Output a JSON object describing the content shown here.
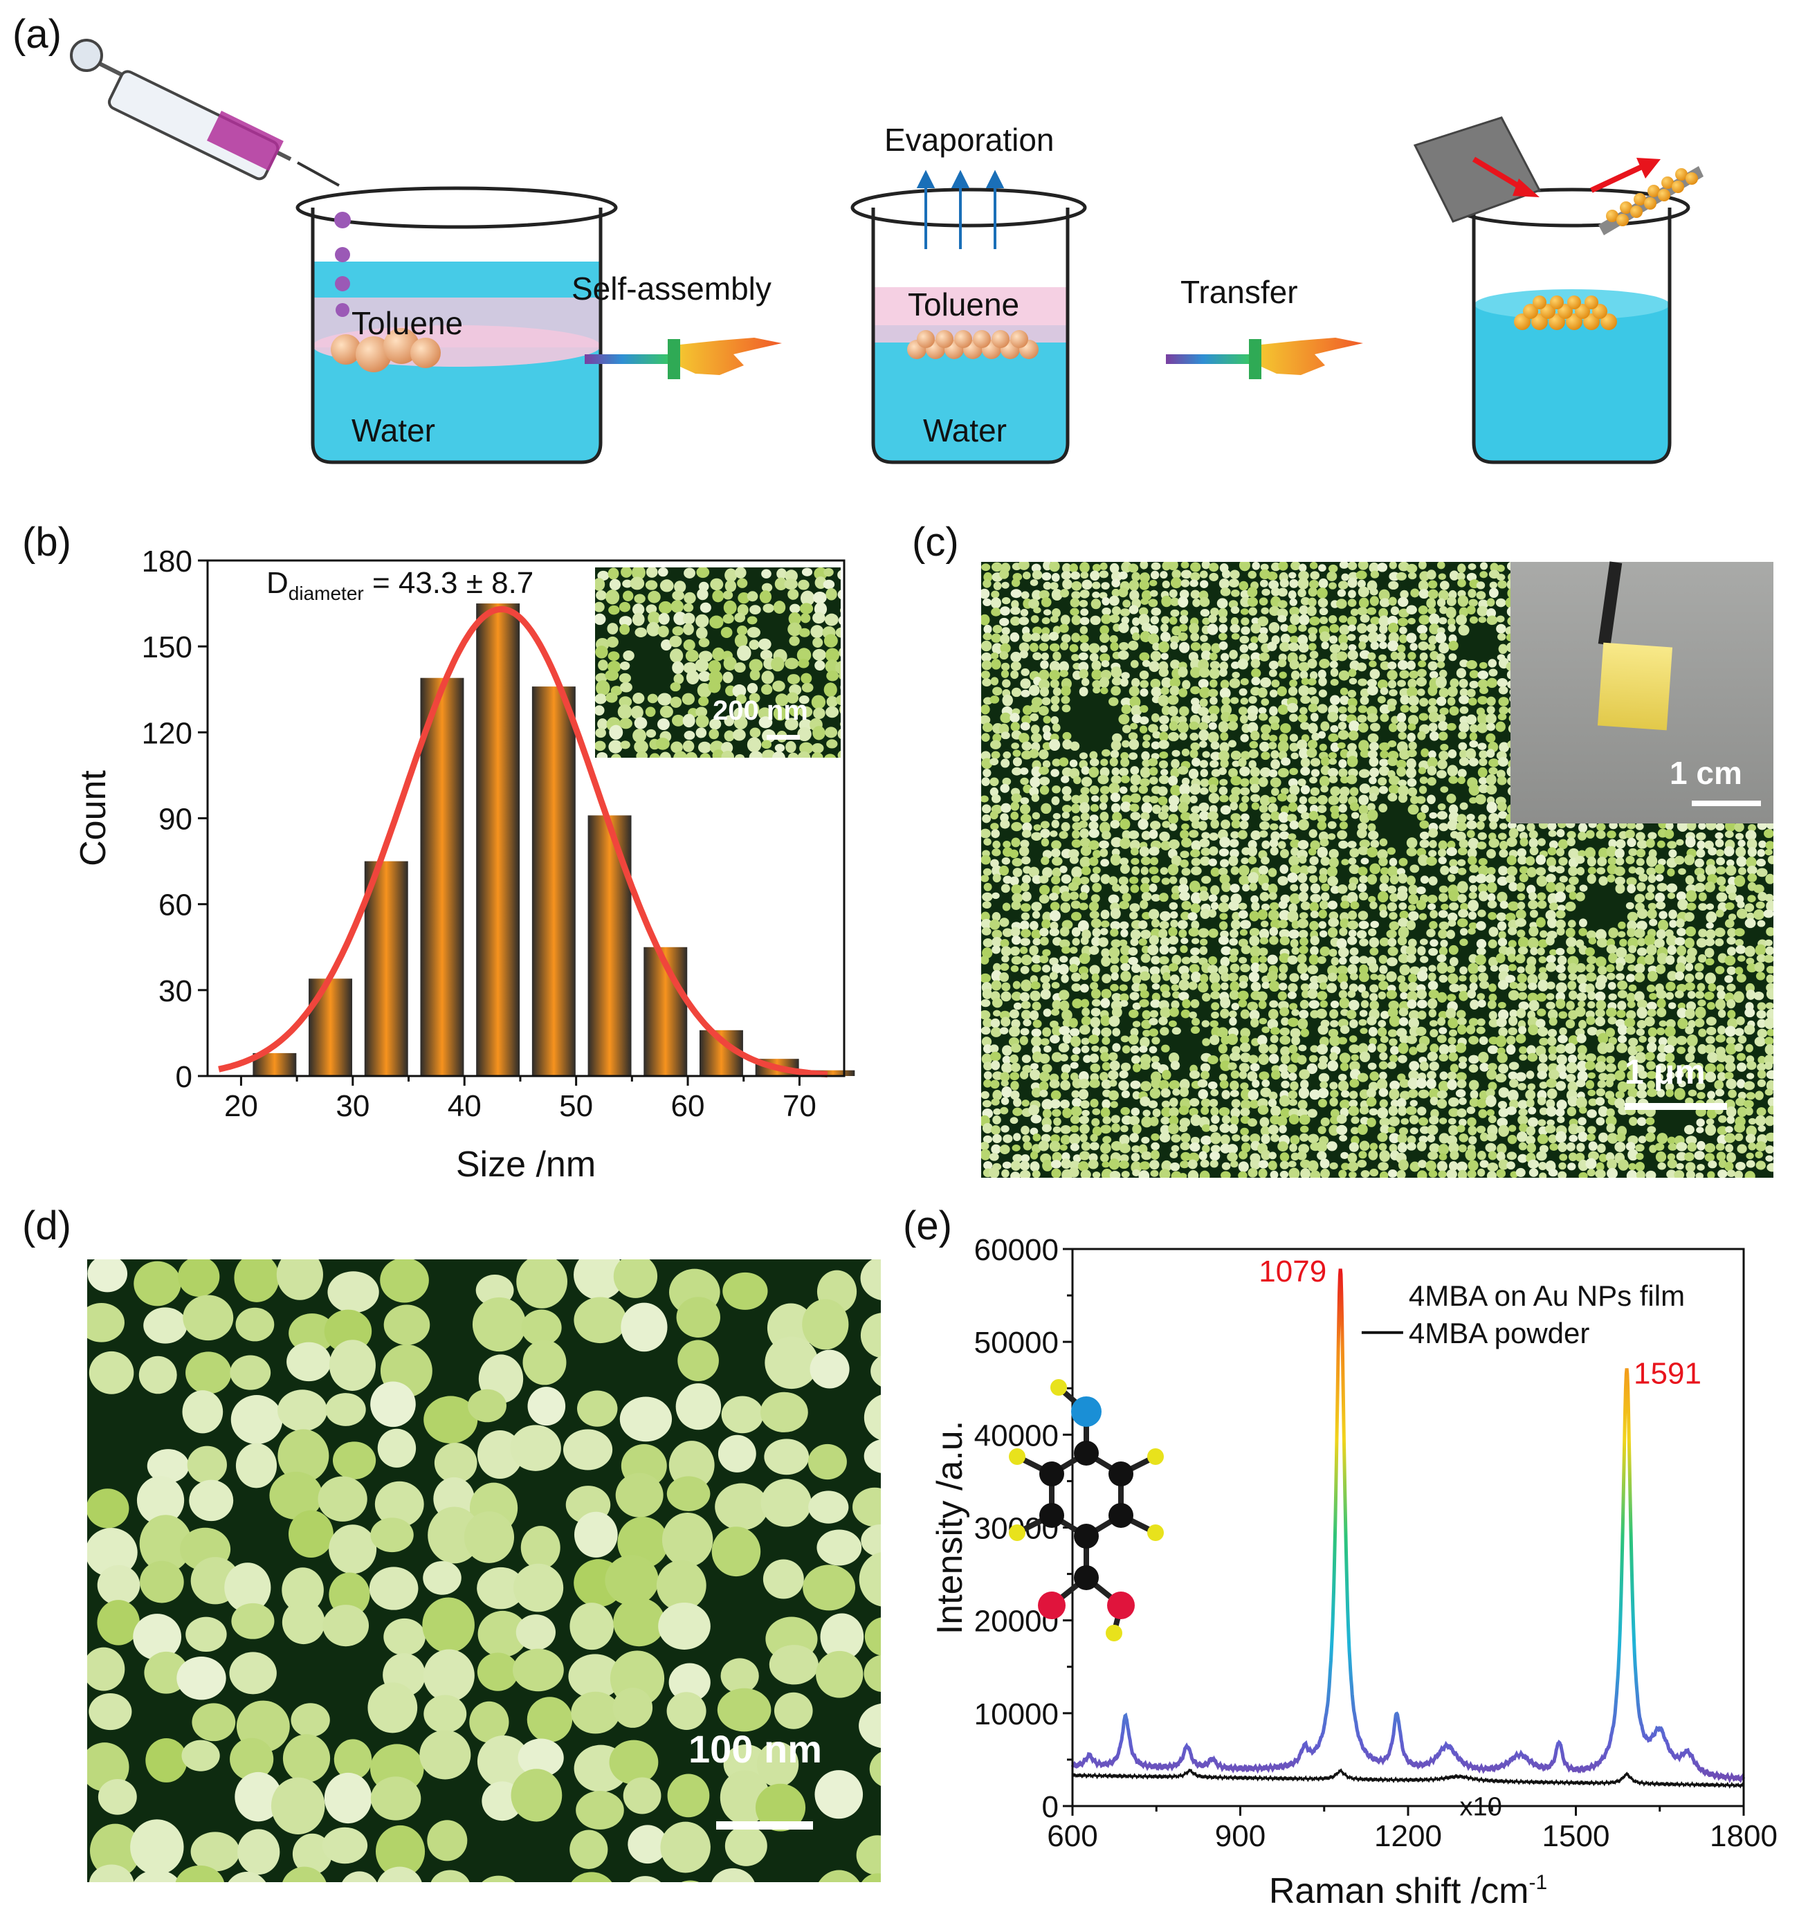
{
  "panels": {
    "a": {
      "letter": "(a)",
      "beaker1": {
        "solvent": "Toluene",
        "base": "Water"
      },
      "step1": "Self-assembly",
      "beaker2": {
        "evap": "Evaporation",
        "solvent": "Toluene",
        "base": "Water"
      },
      "step2": "Transfer"
    },
    "b": {
      "letter": "(b)",
      "annotation_main": "D",
      "annotation_sub": "diameter",
      "annotation_value": " = 43.3 ± 8.7",
      "inset_scale": "200 nm"
    },
    "c": {
      "letter": "(c)",
      "scale": "1 μm",
      "inset_scale": "1 cm"
    },
    "d": {
      "letter": "(d)",
      "scale": "100 nm"
    },
    "e": {
      "letter": "(e)",
      "multiplier_note": "x10",
      "peak_labels": [
        "1079",
        "1591"
      ]
    }
  },
  "colors": {
    "bar_orange": "#f7931e",
    "fit_red": "#f0453c",
    "peak_label_red": "#e8141c",
    "powder_black": "#111111",
    "sem_green": "#b7d46a",
    "sem_bg": "#0e2b10",
    "water": "#3cc8e6",
    "toluene": "#f3c8de"
  },
  "chart_data": [
    {
      "type": "bar",
      "title": "",
      "xlabel": "Size /nm",
      "ylabel": "Count",
      "x_ticks": [
        "20",
        "30",
        "40",
        "50",
        "60",
        "70"
      ],
      "y_ticks": [
        "0",
        "30",
        "60",
        "90",
        "120",
        "150",
        "180"
      ],
      "xlim": [
        17,
        74
      ],
      "ylim": [
        0,
        180
      ],
      "bin_centers": [
        23,
        28,
        33,
        38,
        43,
        48,
        53,
        58,
        63,
        68,
        73
      ],
      "values": [
        8,
        34,
        75,
        139,
        165,
        136,
        91,
        45,
        16,
        6,
        2
      ],
      "fit": {
        "type": "gaussian",
        "mean": 43.3,
        "sd": 8.7,
        "peak": 163
      }
    },
    {
      "type": "line",
      "xlabel": "Raman shift /cm",
      "xlabel_sup": "-1",
      "ylabel": "Intensity /a.u.",
      "x_ticks": [
        "600",
        "900",
        "1200",
        "1500",
        "1800"
      ],
      "y_ticks": [
        "0",
        "10000",
        "20000",
        "30000",
        "40000",
        "50000",
        "60000"
      ],
      "xlim": [
        600,
        1800
      ],
      "ylim": [
        0,
        60000
      ],
      "series": [
        {
          "name": "4MBA on Au NPs film",
          "baseline": 4200,
          "peaks": [
            [
              630,
              1200,
              8
            ],
            [
              695,
              5500,
              8
            ],
            [
              805,
              2400,
              8
            ],
            [
              850,
              1000,
              8
            ],
            [
              1015,
              1800,
              8
            ],
            [
              1079,
              54000,
              9
            ],
            [
              1180,
              5800,
              8
            ],
            [
              1270,
              2800,
              22
            ],
            [
              1400,
              2000,
              25
            ],
            [
              1470,
              3200,
              7
            ],
            [
              1591,
              43500,
              9
            ],
            [
              1650,
              4200,
              18
            ],
            [
              1700,
              2200,
              15
            ]
          ]
        },
        {
          "name": "4MBA powder",
          "baseline": 3300,
          "peaks": [
            [
              810,
              700,
              8
            ],
            [
              1079,
              900,
              9
            ],
            [
              1290,
              500,
              30
            ],
            [
              1591,
              1000,
              9
            ]
          ]
        }
      ]
    }
  ]
}
